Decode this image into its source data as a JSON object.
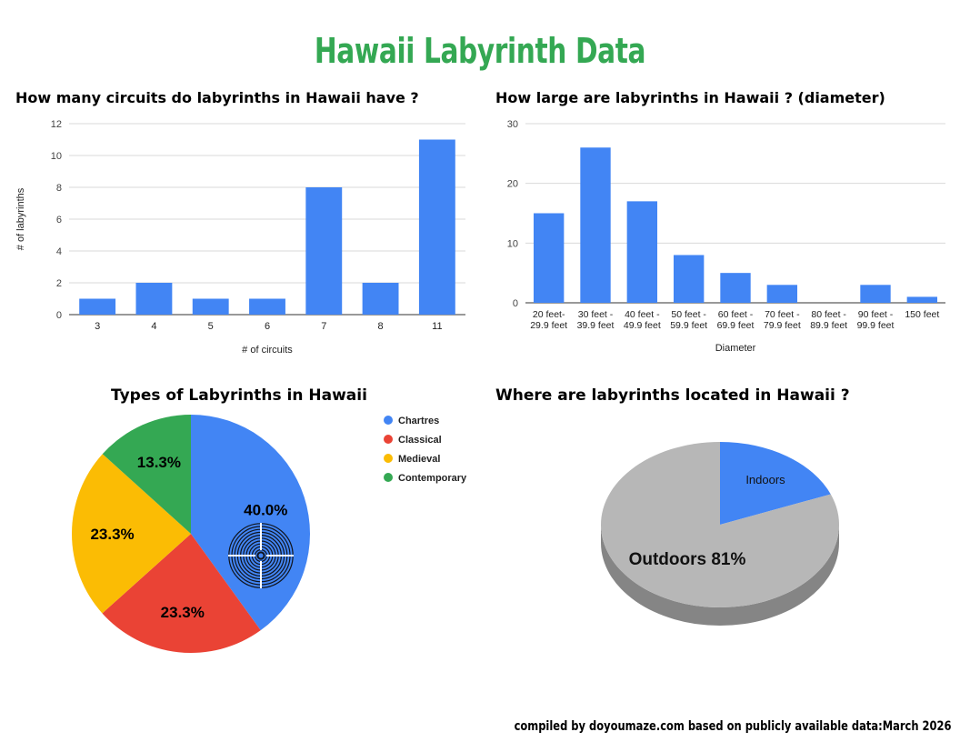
{
  "page": {
    "title": "Hawaii Labyrinth Data",
    "footer": "compiled by doyoumaze.com based on publicly available data:March 2026",
    "colors": {
      "title": "#34a853",
      "bar": "#4285f4"
    }
  },
  "chart_data": [
    {
      "type": "bar",
      "title": "How many circuits do labyrinths in Hawaii have ?",
      "xlabel": "# of circuits",
      "ylabel": "# of labyrinths",
      "categories": [
        "3",
        "4",
        "5",
        "6",
        "7",
        "8",
        "11"
      ],
      "values": [
        1,
        2,
        1,
        1,
        8,
        2,
        11
      ],
      "ylim": [
        0,
        12
      ],
      "yticks": [
        0,
        2,
        4,
        6,
        8,
        10,
        12
      ],
      "grid": true,
      "color": "#4285f4"
    },
    {
      "type": "bar",
      "title": "How large are labyrinths in Hawaii ? (diameter)",
      "xlabel": "Diameter",
      "ylabel": "",
      "categories": [
        [
          "20 feet-",
          "29.9 feet"
        ],
        [
          "30 feet -",
          "39.9 feet"
        ],
        [
          "40 feet -",
          "49.9 feet"
        ],
        [
          "50 feet -",
          "59.9 feet"
        ],
        [
          "60 feet -",
          "69.9 feet"
        ],
        [
          "70 feet -",
          "79.9 feet"
        ],
        [
          "80 feet -",
          "89.9 feet"
        ],
        [
          "90 feet -",
          "99.9 feet"
        ],
        [
          "150 feet"
        ]
      ],
      "values": [
        15,
        26,
        17,
        8,
        5,
        3,
        0,
        3,
        1
      ],
      "ylim": [
        0,
        30
      ],
      "yticks": [
        0,
        10,
        20,
        30
      ],
      "grid": true,
      "color": "#4285f4"
    },
    {
      "type": "pie",
      "title": "Types of Labyrinths in Hawaii",
      "slices": [
        {
          "name": "Chartres",
          "value": 40.0,
          "label": "40.0%",
          "color": "#4285f4"
        },
        {
          "name": "Classical",
          "value": 23.3,
          "label": "23.3%",
          "color": "#ea4335"
        },
        {
          "name": "Medieval",
          "value": 23.3,
          "label": "23.3%",
          "color": "#fbbc04"
        },
        {
          "name": "Contemporary",
          "value": 13.3,
          "label": "13.3%",
          "color": "#34a853"
        }
      ],
      "legend": "right",
      "icon": "labyrinth-icon"
    },
    {
      "type": "pie",
      "title": "Where are labyrinths located in Hawaii ?",
      "style": "3d",
      "slices": [
        {
          "name": "Indoors",
          "value": 19,
          "label": "Indoors",
          "color": "#4285f4"
        },
        {
          "name": "Outdoors",
          "value": 81,
          "label": "Outdoors 81%",
          "color": "#b7b7b7"
        }
      ]
    }
  ]
}
